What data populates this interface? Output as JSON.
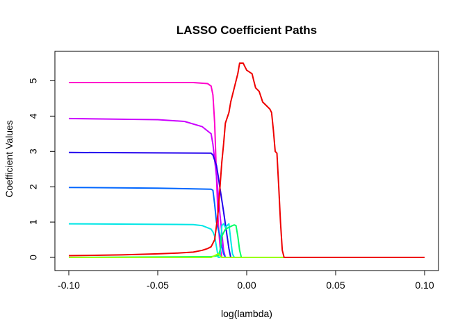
{
  "chart_data": {
    "type": "line",
    "title": "LASSO Coefficient Paths",
    "xlabel": "log(lambda)",
    "ylabel": "Coefficient Values",
    "xlim": [
      -0.1,
      0.1
    ],
    "ylim": [
      0,
      5.5
    ],
    "x_ticks": [
      -0.1,
      -0.05,
      0.0,
      0.05,
      0.1
    ],
    "x_tick_labels": [
      "-0.10",
      "-0.05",
      "0.00",
      "0.05",
      "0.10"
    ],
    "y_ticks": [
      0,
      1,
      2,
      3,
      4,
      5
    ],
    "y_tick_labels": [
      "0",
      "1",
      "2",
      "3",
      "4",
      "5"
    ],
    "grid": false,
    "legend": "none",
    "series": [
      {
        "color": "#ff00cc",
        "points": [
          [
            -0.1,
            4.95
          ],
          [
            -0.03,
            4.95
          ],
          [
            -0.022,
            4.92
          ],
          [
            -0.02,
            4.85
          ],
          [
            -0.019,
            4.6
          ],
          [
            -0.018,
            3.8
          ],
          [
            -0.017,
            2.3
          ],
          [
            -0.016,
            1.0
          ],
          [
            -0.015,
            0.3
          ],
          [
            -0.014,
            0.0
          ],
          [
            0.1,
            0.0
          ]
        ]
      },
      {
        "color": "#cc00ff",
        "points": [
          [
            -0.1,
            3.93
          ],
          [
            -0.05,
            3.9
          ],
          [
            -0.035,
            3.85
          ],
          [
            -0.025,
            3.7
          ],
          [
            -0.02,
            3.5
          ],
          [
            -0.019,
            3.2
          ],
          [
            -0.017,
            2.3
          ],
          [
            -0.016,
            1.8
          ],
          [
            -0.015,
            1.2
          ],
          [
            -0.014,
            0.7
          ],
          [
            -0.013,
            0.2
          ],
          [
            -0.012,
            0.0
          ],
          [
            0.1,
            0.0
          ]
        ]
      },
      {
        "color": "#2200ee",
        "points": [
          [
            -0.1,
            2.97
          ],
          [
            -0.02,
            2.95
          ],
          [
            -0.019,
            2.9
          ],
          [
            -0.017,
            2.6
          ],
          [
            -0.016,
            2.3
          ],
          [
            -0.015,
            1.95
          ],
          [
            -0.013,
            1.3
          ],
          [
            -0.011,
            0.6
          ],
          [
            -0.01,
            0.25
          ],
          [
            -0.009,
            0.0
          ],
          [
            0.1,
            0.0
          ]
        ]
      },
      {
        "color": "#0066ff",
        "points": [
          [
            -0.1,
            1.98
          ],
          [
            -0.05,
            1.96
          ],
          [
            -0.02,
            1.93
          ],
          [
            -0.019,
            1.9
          ],
          [
            -0.018,
            1.5
          ],
          [
            -0.017,
            1.0
          ],
          [
            -0.015,
            0.6
          ],
          [
            -0.014,
            0.3
          ],
          [
            -0.013,
            0.1
          ],
          [
            -0.012,
            0.0
          ],
          [
            0.1,
            0.0
          ]
        ]
      },
      {
        "color": "#00e6e6",
        "points": [
          [
            -0.1,
            0.95
          ],
          [
            -0.03,
            0.93
          ],
          [
            -0.025,
            0.9
          ],
          [
            -0.02,
            0.8
          ],
          [
            -0.019,
            0.72
          ],
          [
            -0.018,
            0.6
          ],
          [
            -0.017,
            0.3
          ],
          [
            -0.016,
            0.0
          ],
          [
            -0.015,
            0.0
          ],
          [
            -0.014,
            0.9
          ],
          [
            -0.013,
            0.95
          ],
          [
            -0.012,
            0.85
          ],
          [
            -0.011,
            0.9
          ],
          [
            -0.01,
            0.95
          ],
          [
            -0.009,
            0.5
          ],
          [
            -0.008,
            0.1
          ],
          [
            -0.007,
            0.0
          ],
          [
            0.1,
            0.0
          ]
        ]
      },
      {
        "color": "#00ff66",
        "points": [
          [
            -0.1,
            0.0
          ],
          [
            -0.02,
            0.02
          ],
          [
            -0.016,
            0.05
          ],
          [
            -0.015,
            0.2
          ],
          [
            -0.014,
            0.6
          ],
          [
            -0.012,
            0.8
          ],
          [
            -0.01,
            0.85
          ],
          [
            -0.008,
            0.9
          ],
          [
            -0.007,
            0.92
          ],
          [
            -0.006,
            0.9
          ],
          [
            -0.005,
            0.6
          ],
          [
            -0.004,
            0.2
          ],
          [
            -0.003,
            0.0
          ],
          [
            0.1,
            0.0
          ]
        ]
      },
      {
        "color": "#99ff00",
        "points": [
          [
            -0.1,
            0.0
          ],
          [
            -0.02,
            0.0
          ],
          [
            -0.018,
            0.05
          ],
          [
            -0.016,
            0.1
          ],
          [
            -0.015,
            0.05
          ],
          [
            -0.014,
            0.0
          ],
          [
            0.1,
            0.0
          ]
        ]
      },
      {
        "color": "#ee0000",
        "points": [
          [
            -0.1,
            0.05
          ],
          [
            -0.07,
            0.07
          ],
          [
            -0.05,
            0.1
          ],
          [
            -0.04,
            0.12
          ],
          [
            -0.03,
            0.15
          ],
          [
            -0.025,
            0.2
          ],
          [
            -0.022,
            0.25
          ],
          [
            -0.02,
            0.3
          ],
          [
            -0.018,
            0.5
          ],
          [
            -0.017,
            0.9
          ],
          [
            -0.016,
            1.3
          ],
          [
            -0.015,
            2.0
          ],
          [
            -0.014,
            2.7
          ],
          [
            -0.013,
            3.2
          ],
          [
            -0.012,
            3.8
          ],
          [
            -0.01,
            4.1
          ],
          [
            -0.009,
            4.4
          ],
          [
            -0.007,
            4.8
          ],
          [
            -0.005,
            5.2
          ],
          [
            -0.004,
            5.5
          ],
          [
            -0.003,
            5.5
          ],
          [
            -0.002,
            5.5
          ],
          [
            -0.001,
            5.4
          ],
          [
            0.0,
            5.3
          ],
          [
            0.003,
            5.2
          ],
          [
            0.004,
            5.0
          ],
          [
            0.005,
            4.8
          ],
          [
            0.007,
            4.7
          ],
          [
            0.009,
            4.4
          ],
          [
            0.011,
            4.3
          ],
          [
            0.013,
            4.2
          ],
          [
            0.014,
            4.1
          ],
          [
            0.015,
            3.6
          ],
          [
            0.016,
            3.0
          ],
          [
            0.017,
            2.95
          ],
          [
            0.018,
            2.0
          ],
          [
            0.019,
            1.0
          ],
          [
            0.02,
            0.2
          ],
          [
            0.021,
            0.0
          ],
          [
            0.1,
            0.0
          ]
        ]
      }
    ]
  }
}
